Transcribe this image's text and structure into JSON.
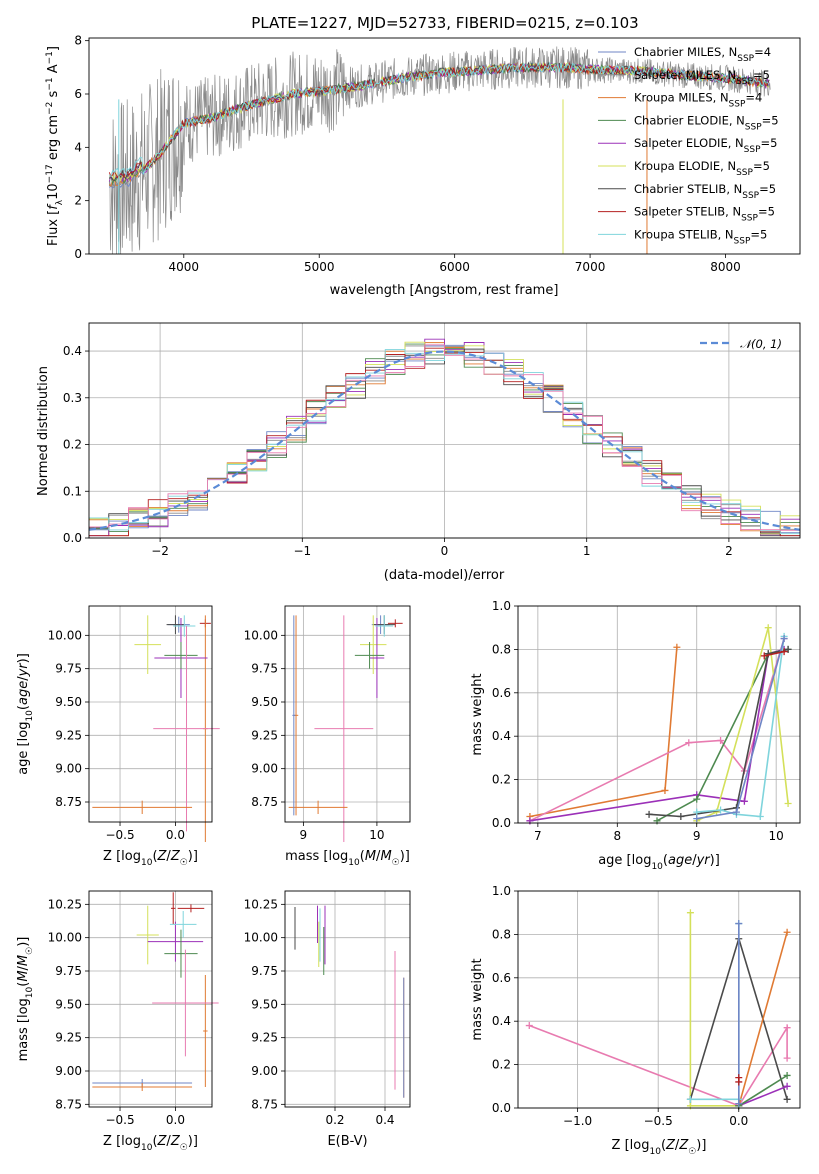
{
  "title": "PLATE=1227, MJD=52733, FIBERID=0215, z=0.103",
  "colors": {
    "chab_miles": "#6f86c6",
    "salp_miles": "#8a8a8a",
    "krou_miles": "#e07a33",
    "chab_elodie": "#4e8a50",
    "salp_elodie": "#9b30b8",
    "krou_elodie": "#d4e05a",
    "chab_stelib": "#4a4a4a",
    "salp_stelib": "#b42020",
    "krou_stelib": "#7fd4dc",
    "pink": "#e87bb0",
    "gauss": "#5b8bd6"
  },
  "chart_data": [
    {
      "id": "spectrum",
      "type": "line",
      "xlabel": "wavelength [Angstrom, rest frame]",
      "ylabel": "Flux [f_λ10^-17 erg cm^-2 s^-1 A^-1]",
      "xlim": [
        3300,
        8550
      ],
      "ylim": [
        0,
        8.1
      ],
      "xticks": [
        "4000",
        "5000",
        "6000",
        "7000",
        "8000"
      ],
      "yticks": [
        "0",
        "2",
        "4",
        "6",
        "8"
      ],
      "continuum": {
        "x": [
          3450,
          3600,
          3800,
          4000,
          4200,
          4500,
          4800,
          5000,
          5300,
          5600,
          5900,
          6200,
          6500,
          6800,
          7100,
          7400,
          7700,
          8000,
          8300
        ],
        "y": [
          2.6,
          2.7,
          3.6,
          4.9,
          5.1,
          5.6,
          6.0,
          6.1,
          6.3,
          6.6,
          6.8,
          6.9,
          7.0,
          7.0,
          6.9,
          6.85,
          6.7,
          6.6,
          6.4
        ]
      },
      "legend": [
        {
          "label": "Chabrier MILES, N",
          "sub": "SSP",
          "eq": "=4",
          "color": "chab_miles"
        },
        {
          "label": "Salpeter MILES, N",
          "sub": "SSP",
          "eq": "=5",
          "color": "salp_miles"
        },
        {
          "label": "Kroupa MILES, N",
          "sub": "SSP",
          "eq": "=4",
          "color": "krou_miles"
        },
        {
          "label": "Chabrier ELODIE, N",
          "sub": "SSP",
          "eq": "=5",
          "color": "chab_elodie"
        },
        {
          "label": "Salpeter ELODIE, N",
          "sub": "SSP",
          "eq": "=5",
          "color": "salp_elodie"
        },
        {
          "label": "Kroupa ELODIE, N",
          "sub": "SSP",
          "eq": "=5",
          "color": "krou_elodie"
        },
        {
          "label": "Chabrier STELIB, N",
          "sub": "SSP",
          "eq": "=5",
          "color": "chab_stelib"
        },
        {
          "label": "Salpeter STELIB, N",
          "sub": "SSP",
          "eq": "=5",
          "color": "salp_stelib"
        },
        {
          "label": "Kroupa STELIB, N",
          "sub": "SSP",
          "eq": "=5",
          "color": "krou_stelib"
        }
      ],
      "legend_loc": "right"
    },
    {
      "id": "residuals",
      "type": "line",
      "xlabel": "(data-model)/error",
      "ylabel": "Normed distribution",
      "xlim": [
        -2.5,
        2.5
      ],
      "ylim": [
        0,
        0.46
      ],
      "xticks": [
        "−2",
        "−1",
        "0",
        "1",
        "2"
      ],
      "yticks": [
        "0.0",
        "0.1",
        "0.2",
        "0.3",
        "0.4"
      ],
      "grid": true,
      "legend_label": "𝒩(0, 1)",
      "legend_loc": "top-right",
      "hist_bins": 36
    },
    {
      "id": "age_vs_Z",
      "type": "scatter",
      "xlabel": "Z [log10(Z/Z☉)]",
      "ylabel": "age  [log10(age/yr)]",
      "xlim": [
        -0.78,
        0.33
      ],
      "ylim": [
        8.6,
        10.22
      ],
      "xticks": [
        "−0.5",
        "0.0"
      ],
      "yticks": [
        "8.75",
        "9.00",
        "9.25",
        "9.50",
        "9.75",
        "10.00"
      ],
      "points": [
        {
          "x": 0.03,
          "y": 10.08,
          "xe": 0.1,
          "ye": 0.06,
          "c": "chab_miles"
        },
        {
          "x": 0.0,
          "y": 10.08,
          "xe": 0.08,
          "ye": 0.07,
          "c": "chab_stelib"
        },
        {
          "x": 0.27,
          "y": 10.09,
          "xe": 0.05,
          "ye": 0.03,
          "c": "salp_stelib"
        },
        {
          "x": 0.27,
          "y": 9.3,
          "xe": 0.02,
          "ye": 0.85,
          "c": "krou_miles"
        },
        {
          "x": -0.25,
          "y": 9.93,
          "xe": 0.12,
          "ye": 0.22,
          "c": "krou_elodie"
        },
        {
          "x": 0.05,
          "y": 9.83,
          "xe": 0.24,
          "ye": 0.3,
          "c": "salp_elodie"
        },
        {
          "x": 0.05,
          "y": 9.85,
          "xe": 0.15,
          "ye": 0.1,
          "c": "chab_elodie"
        },
        {
          "x": 0.08,
          "y": 10.07,
          "xe": 0.1,
          "ye": 0.08,
          "c": "krou_stelib"
        },
        {
          "x": 0.1,
          "y": 9.3,
          "xe": 0.3,
          "ye": 0.77,
          "c": "pink"
        },
        {
          "x": -0.3,
          "y": 8.71,
          "xe": 0.45,
          "ye": 0.05,
          "c": "krou_miles"
        }
      ]
    },
    {
      "id": "age_vs_mass",
      "type": "scatter",
      "xlabel": "mass [log10(M/M☉)]",
      "ylabel": "",
      "xlim": [
        8.75,
        10.45
      ],
      "ylim": [
        8.6,
        10.22
      ],
      "xticks": [
        "9",
        "10"
      ],
      "yticks": [
        "8.75",
        "9.00",
        "9.25",
        "9.50",
        "9.75",
        "10.00"
      ],
      "points": [
        {
          "x": 10.05,
          "y": 10.08,
          "xe": 0.12,
          "ye": 0.07,
          "c": "chab_miles"
        },
        {
          "x": 10.1,
          "y": 10.08,
          "xe": 0.15,
          "ye": 0.07,
          "c": "chab_stelib"
        },
        {
          "x": 10.25,
          "y": 10.09,
          "xe": 0.1,
          "ye": 0.03,
          "c": "salp_stelib"
        },
        {
          "x": 8.9,
          "y": 9.4,
          "xe": 0.03,
          "ye": 0.75,
          "c": "krou_miles"
        },
        {
          "x": 9.95,
          "y": 9.93,
          "xe": 0.18,
          "ye": 0.22,
          "c": "krou_elodie"
        },
        {
          "x": 10.0,
          "y": 9.83,
          "xe": 0.1,
          "ye": 0.3,
          "c": "salp_elodie"
        },
        {
          "x": 9.9,
          "y": 9.85,
          "xe": 0.2,
          "ye": 0.1,
          "c": "chab_elodie"
        },
        {
          "x": 10.1,
          "y": 10.07,
          "xe": 0.12,
          "ye": 0.08,
          "c": "krou_stelib"
        },
        {
          "x": 9.55,
          "y": 9.3,
          "xe": 0.4,
          "ye": 0.85,
          "c": "pink"
        },
        {
          "x": 9.2,
          "y": 8.71,
          "xe": 0.4,
          "ye": 0.05,
          "c": "krou_miles"
        },
        {
          "x": 8.87,
          "y": 9.4,
          "xe": 0.02,
          "ye": 0.75,
          "c": "chab_miles"
        }
      ]
    },
    {
      "id": "weight_vs_age",
      "type": "line",
      "xlabel": "age  [log10(age/yr)]",
      "ylabel": "mass weight",
      "xlim": [
        6.75,
        10.3
      ],
      "ylim": [
        0,
        1.0
      ],
      "xticks": [
        "7",
        "8",
        "9",
        "10"
      ],
      "yticks": [
        "0.0",
        "0.2",
        "0.4",
        "0.6",
        "0.8",
        "1.0"
      ],
      "grid": true,
      "series": [
        {
          "c": "krou_miles",
          "x": [
            6.9,
            8.6,
            8.75
          ],
          "y": [
            0.03,
            0.15,
            0.81
          ]
        },
        {
          "c": "pink",
          "x": [
            6.9,
            8.9,
            9.3,
            9.6,
            10.1
          ],
          "y": [
            0.01,
            0.37,
            0.38,
            0.24,
            0.85
          ]
        },
        {
          "c": "salp_elodie",
          "x": [
            6.9,
            9.0,
            9.6,
            9.9,
            10.1
          ],
          "y": [
            0.01,
            0.13,
            0.1,
            0.78,
            0.8
          ]
        },
        {
          "c": "chab_elodie",
          "x": [
            8.5,
            9.0,
            9.9,
            10.15
          ],
          "y": [
            0.01,
            0.11,
            0.78,
            0.8
          ]
        },
        {
          "c": "krou_elodie",
          "x": [
            9.0,
            9.25,
            9.9,
            10.15
          ],
          "y": [
            0.01,
            0.05,
            0.9,
            0.09
          ]
        },
        {
          "c": "chab_stelib",
          "x": [
            8.4,
            8.8,
            9.5,
            9.9,
            10.15
          ],
          "y": [
            0.04,
            0.03,
            0.07,
            0.78,
            0.8
          ]
        },
        {
          "c": "krou_stelib",
          "x": [
            9.0,
            9.3,
            9.5,
            9.8,
            10.1
          ],
          "y": [
            0.05,
            0.06,
            0.04,
            0.03,
            0.86
          ]
        },
        {
          "c": "chab_miles",
          "x": [
            9.0,
            9.5,
            10.1
          ],
          "y": [
            0.02,
            0.05,
            0.85
          ]
        },
        {
          "c": "salp_stelib",
          "x": [
            9.85,
            10.1
          ],
          "y": [
            0.77,
            0.79
          ]
        }
      ]
    },
    {
      "id": "mass_vs_Z",
      "type": "scatter",
      "xlabel": "Z [log10(Z/Z☉)]",
      "ylabel": "mass [log10(M/M☉)]",
      "xlim": [
        -0.78,
        0.33
      ],
      "ylim": [
        8.73,
        10.35
      ],
      "xticks": [
        "−0.5",
        "0.0"
      ],
      "yticks": [
        "8.75",
        "9.00",
        "9.25",
        "9.50",
        "9.75",
        "10.00",
        "10.25"
      ],
      "points": [
        {
          "x": 0.14,
          "y": 10.22,
          "xe": 0.12,
          "ye": 0.03,
          "c": "salp_stelib"
        },
        {
          "x": -0.02,
          "y": 10.22,
          "xe": 0.02,
          "ye": 0.12,
          "c": "salp_stelib"
        },
        {
          "x": -0.25,
          "y": 10.02,
          "xe": 0.1,
          "ye": 0.22,
          "c": "krou_elodie"
        },
        {
          "x": 0.0,
          "y": 9.97,
          "xe": 0.25,
          "ye": 0.15,
          "c": "salp_elodie"
        },
        {
          "x": 0.05,
          "y": 9.88,
          "xe": 0.15,
          "ye": 0.18,
          "c": "chab_elodie"
        },
        {
          "x": 0.07,
          "y": 10.1,
          "xe": 0.12,
          "ye": 0.1,
          "c": "krou_stelib"
        },
        {
          "x": 0.27,
          "y": 9.3,
          "xe": 0.02,
          "ye": 0.42,
          "c": "krou_miles"
        },
        {
          "x": 0.09,
          "y": 9.51,
          "xe": 0.3,
          "ye": 0.4,
          "c": "pink"
        },
        {
          "x": -0.3,
          "y": 8.91,
          "xe": 0.45,
          "ye": 0.03,
          "c": "chab_miles"
        },
        {
          "x": -0.3,
          "y": 8.88,
          "xe": 0.45,
          "ye": 0.03,
          "c": "krou_miles"
        }
      ]
    },
    {
      "id": "mass_vs_ebv",
      "type": "scatter",
      "xlabel": "E(B-V)",
      "ylabel": "",
      "xlim": [
        0.0,
        0.5
      ],
      "ylim": [
        8.73,
        10.35
      ],
      "xticks": [
        "0.2",
        "0.4"
      ],
      "yticks": [
        "8.75",
        "9.00",
        "9.25",
        "9.50",
        "9.75",
        "10.00",
        "10.25"
      ],
      "points": [
        {
          "x": 0.04,
          "y": 10.07,
          "ye": 0.16,
          "c": "chab_stelib"
        },
        {
          "x": 0.13,
          "y": 10.1,
          "ye": 0.14,
          "c": "salp_elodie"
        },
        {
          "x": 0.135,
          "y": 9.95,
          "ye": 0.17,
          "c": "krou_elodie"
        },
        {
          "x": 0.14,
          "y": 10.02,
          "ye": 0.2,
          "c": "krou_stelib"
        },
        {
          "x": 0.16,
          "y": 10.02,
          "ye": 0.22,
          "c": "salp_elodie"
        },
        {
          "x": 0.155,
          "y": 9.9,
          "ye": 0.18,
          "c": "chab_elodie"
        },
        {
          "x": 0.44,
          "y": 9.38,
          "ye": 0.52,
          "c": "pink"
        },
        {
          "x": 0.475,
          "y": 9.25,
          "ye": 0.45,
          "c": "krou_miles"
        },
        {
          "x": 0.475,
          "y": 9.25,
          "ye": 0.45,
          "c": "chab_miles"
        }
      ]
    },
    {
      "id": "weight_vs_Z",
      "type": "line",
      "xlabel": "Z [log10(Z/Z☉)]",
      "ylabel": "mass weight",
      "xlim": [
        -1.37,
        0.38
      ],
      "ylim": [
        0,
        1.0
      ],
      "xticks": [
        "−1.0",
        "−0.5",
        "0.0"
      ],
      "yticks": [
        "0.0",
        "0.2",
        "0.4",
        "0.6",
        "0.8",
        "1.0"
      ],
      "grid": true,
      "series": [
        {
          "c": "pink",
          "x": [
            -1.3,
            0.0,
            0.3,
            0.3
          ],
          "y": [
            0.38,
            0.01,
            0.37,
            0.23
          ]
        },
        {
          "c": "krou_elodie",
          "x": [
            -0.3,
            -0.3,
            0.0
          ],
          "y": [
            0.9,
            0.01,
            0.01
          ]
        },
        {
          "c": "chab_stelib",
          "x": [
            -0.3,
            0.0,
            0.3
          ],
          "y": [
            0.04,
            0.78,
            0.04
          ]
        },
        {
          "c": "krou_miles",
          "x": [
            0.0,
            0.3
          ],
          "y": [
            0.01,
            0.81
          ]
        },
        {
          "c": "salp_elodie",
          "x": [
            0.0,
            0.3
          ],
          "y": [
            0.01,
            0.1
          ]
        },
        {
          "c": "chab_elodie",
          "x": [
            0.0,
            0.3
          ],
          "y": [
            0.01,
            0.15
          ]
        },
        {
          "c": "krou_stelib",
          "x": [
            -0.3,
            0.0,
            0.0
          ],
          "y": [
            0.04,
            0.04,
            0.85
          ]
        },
        {
          "c": "chab_miles",
          "x": [
            0.0,
            0.0
          ],
          "y": [
            0.02,
            0.85
          ]
        },
        {
          "c": "salp_stelib",
          "x": [
            0.0,
            0.0
          ],
          "y": [
            0.12,
            0.14
          ]
        }
      ]
    }
  ]
}
